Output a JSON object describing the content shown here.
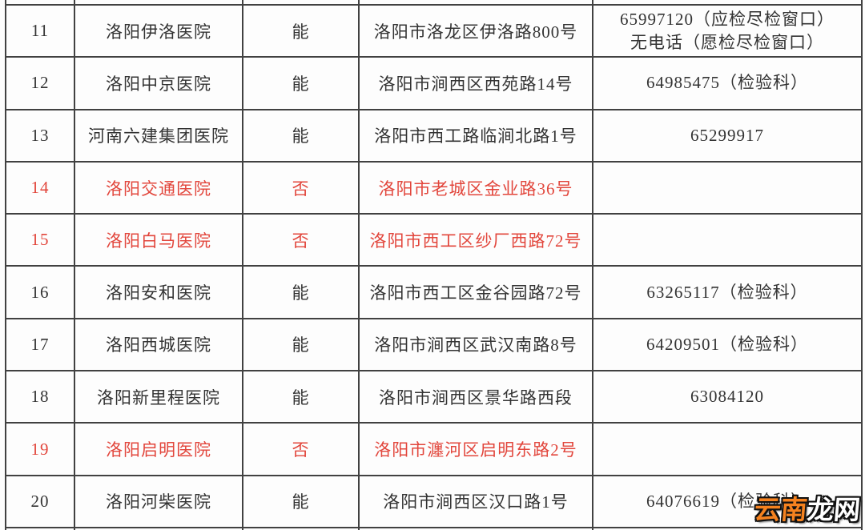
{
  "table": {
    "rows": [
      {
        "no": "11",
        "name": "洛阳伊洛医院",
        "can": "能",
        "address": "洛阳市洛龙区伊洛路800号",
        "phone_lines": [
          "65997120（应检尽检窗口）",
          "无电话（愿检尽检窗口）"
        ],
        "highlight": false
      },
      {
        "no": "12",
        "name": "洛阳中京医院",
        "can": "能",
        "address": "洛阳市涧西区西苑路14号",
        "phone_lines": [
          "64985475（检验科）"
        ],
        "highlight": false
      },
      {
        "no": "13",
        "name": "河南六建集团医院",
        "can": "能",
        "address": "洛阳市西工路临涧北路1号",
        "phone_lines": [
          "65299917"
        ],
        "highlight": false
      },
      {
        "no": "14",
        "name": "洛阳交通医院",
        "can": "否",
        "address": "洛阳市老城区金业路36号",
        "phone_lines": [],
        "highlight": true
      },
      {
        "no": "15",
        "name": "洛阳白马医院",
        "can": "否",
        "address": "洛阳市西工区纱厂西路72号",
        "phone_lines": [],
        "highlight": true
      },
      {
        "no": "16",
        "name": "洛阳安和医院",
        "can": "能",
        "address": "洛阳市西工区金谷园路72号",
        "phone_lines": [
          "63265117（检验科）"
        ],
        "highlight": false
      },
      {
        "no": "17",
        "name": "洛阳西城医院",
        "can": "能",
        "address": "洛阳市涧西区武汉南路8号",
        "phone_lines": [
          "64209501（检验科）"
        ],
        "highlight": false
      },
      {
        "no": "18",
        "name": "洛阳新里程医院",
        "can": "能",
        "address": "洛阳市涧西区景华路西段",
        "phone_lines": [
          "63084120"
        ],
        "highlight": false
      },
      {
        "no": "19",
        "name": "洛阳启明医院",
        "can": "否",
        "address": "洛阳市瀍河区启明东路2号",
        "phone_lines": [],
        "highlight": true
      },
      {
        "no": "20",
        "name": "洛阳河柴医院",
        "can": "能",
        "address": "洛阳市涧西区汉口路1号",
        "phone_lines": [
          "64076619（检验科）"
        ],
        "highlight": false
      }
    ]
  },
  "watermark": {
    "part1": "云南",
    "part2": "龙网"
  },
  "colors": {
    "red_text": "#e2463c",
    "black_text": "#333333",
    "border": "#414141",
    "watermark_orange": "#f5821f",
    "watermark_white": "#ffffff",
    "background": "#fdfdfd"
  }
}
